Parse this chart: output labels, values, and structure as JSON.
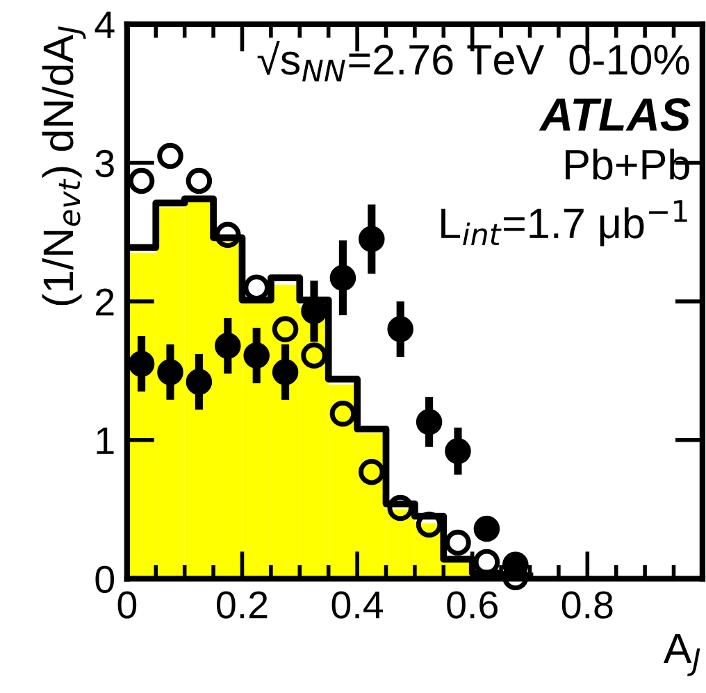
{
  "chart_data": {
    "type": "histogram",
    "xlabel": "A$_{J}$",
    "ylabel": "(1/N$_{evt}$) dN/dA$_{J}$",
    "bins": [
      0,
      0.05,
      0.1,
      0.15,
      0.2,
      0.25,
      0.3,
      0.35,
      0.4,
      0.45,
      0.5,
      0.55,
      0.6,
      0.65,
      0.7
    ],
    "values": [
      2.35,
      2.68,
      2.72,
      2.45,
      2.0,
      2.12,
      1.96,
      1.4,
      1.05,
      0.5,
      0.4,
      0.12,
      0,
      0
    ],
    "color": "#ffff00",
    "series": [
      {
        "type": "step",
        "color": "#000000",
        "x": [
          0,
          0.05,
          0.1,
          0.15,
          0.2,
          0.25,
          0.3,
          0.35,
          0.4,
          0.45,
          0.5,
          0.55,
          0.6,
          0.65,
          0.7
        ],
        "values": [
          2.39,
          2.71,
          2.74,
          2.46,
          2.01,
          2.17,
          2.01,
          1.44,
          1.08,
          0.54,
          0.45,
          0.14,
          0.04,
          0.02,
          0.02
        ]
      },
      {
        "type": "scatter",
        "marker": "circle",
        "color": "#000000",
        "x": [
          0.025,
          0.075,
          0.125,
          0.175,
          0.225,
          0.275,
          0.325,
          0.375,
          0.425,
          0.475,
          0.525,
          0.575,
          0.625,
          0.675
        ],
        "values": [
          2.87,
          3.05,
          2.87,
          2.48,
          2.1,
          1.8,
          1.61,
          1.19,
          0.77,
          0.51,
          0.39,
          0.26,
          0.12,
          0.01
        ]
      },
      {
        "type": "scatter",
        "marker": "circle",
        "color": "#000000",
        "x": [
          0.025,
          0.075,
          0.125,
          0.175,
          0.225,
          0.275,
          0.325,
          0.375,
          0.425,
          0.475,
          0.525,
          0.575,
          0.625,
          0.675
        ],
        "values": [
          1.55,
          1.49,
          1.42,
          1.68,
          1.61,
          1.49,
          1.93,
          2.17,
          2.45,
          1.8,
          1.13,
          0.92,
          0.36,
          0.1
        ],
        "errors": [
          0.2,
          0.2,
          0.2,
          0.2,
          0.2,
          0.2,
          0.22,
          0.27,
          0.25,
          0.2,
          0.18,
          0.17,
          0.05,
          0.03
        ]
      }
    ],
    "xlim": [
      0,
      1
    ],
    "xticks": [
      0,
      0.2,
      0.4,
      0.6,
      0.8,
      {
        "value": 1,
        "label": null
      }
    ],
    "ylim": [
      0,
      4
    ],
    "yticks": [
      0,
      1,
      2,
      3,
      4
    ],
    "grid": false,
    "legend": false,
    "annotations": [
      "√s$_{NN}$=2.76 TeV  0-10%",
      "ATLAS",
      "Pb+Pb",
      "L$_{int}$=1.7 μb$^{−1}$"
    ]
  }
}
